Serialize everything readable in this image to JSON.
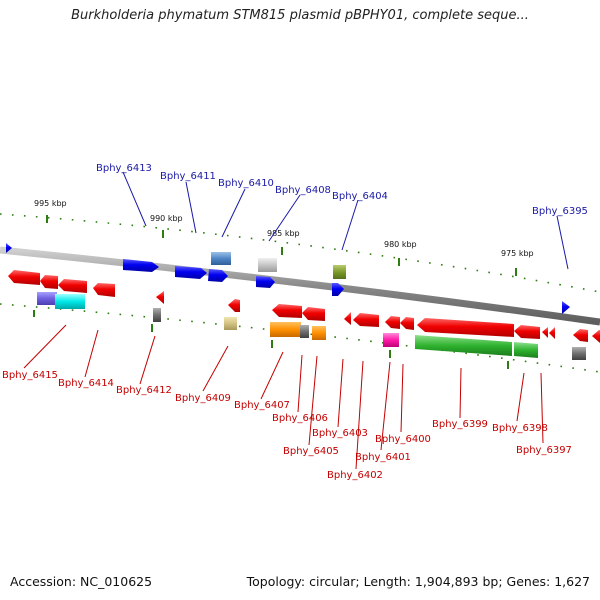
{
  "title": "Burkholderia phymatum STM815 plasmid pBPHY01, complete seque...",
  "footer": {
    "accession": "Accession: NC_010625",
    "summary": "Topology: circular; Length: 1,904,893 bp; Genes: 1,627"
  },
  "scale_labels": [
    "995 kbp",
    "990 kbp",
    "985 kbp",
    "980 kbp",
    "975 kbp"
  ],
  "gene_labels_top": [
    "Bphy_6413",
    "Bphy_6411",
    "Bphy_6410",
    "Bphy_6408",
    "Bphy_6404",
    "Bphy_6395"
  ],
  "gene_labels_bottom": [
    "Bphy_6415",
    "Bphy_6414",
    "Bphy_6412",
    "Bphy_6409",
    "Bphy_6407",
    "Bphy_6406",
    "Bphy_6405",
    "Bphy_6403",
    "Bphy_6402",
    "Bphy_6401",
    "Bphy_6400",
    "Bphy_6399",
    "Bphy_6398",
    "Bphy_6397"
  ],
  "colors": {
    "forward_strand": "#0000ee",
    "reverse_strand": "#ee0000",
    "backbone": "#8a8a8a",
    "tick": "#2e7d12",
    "label_blue": "#1a1aa6",
    "label_red": "#c40000"
  }
}
